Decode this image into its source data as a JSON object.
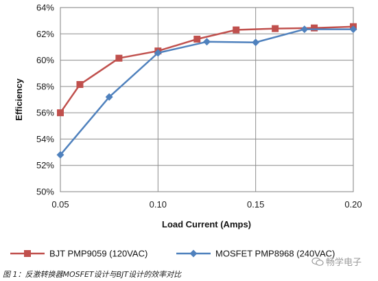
{
  "chart_data": {
    "type": "line",
    "title": "",
    "xlabel": "Load Current (Amps)",
    "ylabel": "Efficiency",
    "xlim": [
      0.05,
      0.2
    ],
    "ylim": [
      50,
      64
    ],
    "x_ticks": [
      "0.05",
      "0.10",
      "0.15",
      "0.20"
    ],
    "y_ticks": [
      "50%",
      "52%",
      "54%",
      "56%",
      "58%",
      "60%",
      "62%",
      "64%"
    ],
    "grid": true,
    "legend_position": "bottom",
    "series": [
      {
        "name": "BJT PMP9059 (120VAC)",
        "color": "#c0504d",
        "marker": "square",
        "points": [
          [
            0.05,
            56.0
          ],
          [
            0.06,
            58.15
          ],
          [
            0.08,
            60.15
          ],
          [
            0.1,
            60.7
          ],
          [
            0.12,
            61.6
          ],
          [
            0.14,
            62.3
          ],
          [
            0.16,
            62.4
          ],
          [
            0.18,
            62.45
          ],
          [
            0.2,
            62.55
          ]
        ]
      },
      {
        "name": "MOSFET PMP8968 (240VAC)",
        "color": "#4f81bd",
        "marker": "diamond",
        "points": [
          [
            0.05,
            52.8
          ],
          [
            0.075,
            57.2
          ],
          [
            0.1,
            60.55
          ],
          [
            0.125,
            61.4
          ],
          [
            0.15,
            61.35
          ],
          [
            0.175,
            62.35
          ],
          [
            0.2,
            62.35
          ]
        ]
      }
    ]
  },
  "caption": "图 1：反激转换器MOSFET设计与BJT设计的效率对比",
  "watermark": {
    "text": "畅学电子",
    "icon": "chat-bubbles-icon"
  }
}
